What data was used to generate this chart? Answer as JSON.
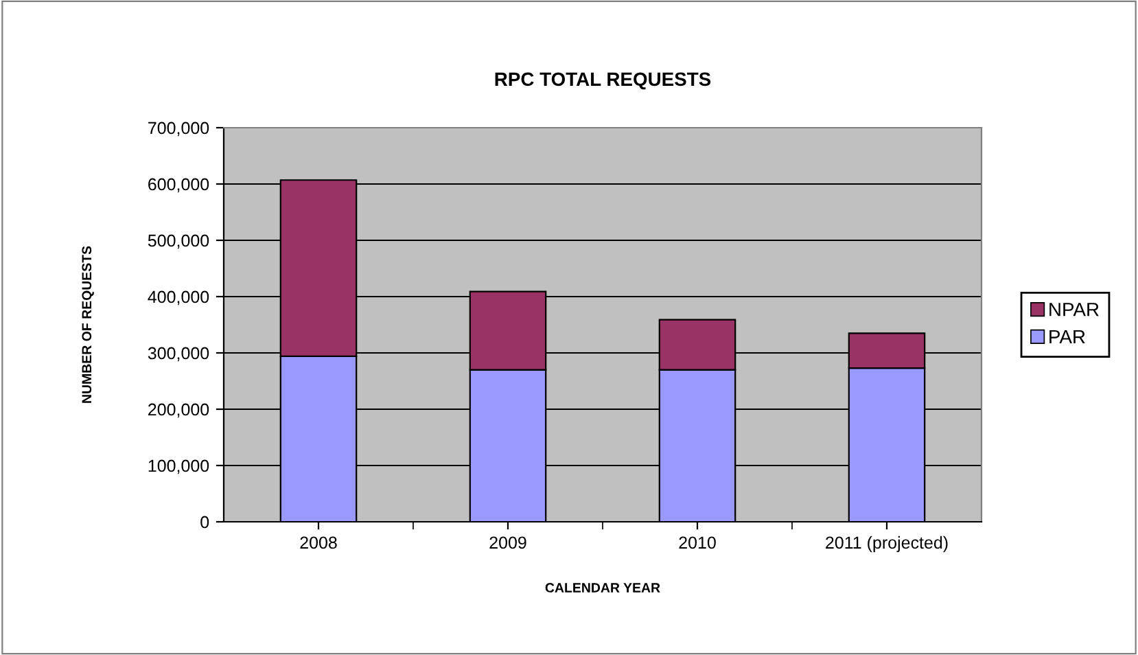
{
  "chart_data": {
    "type": "bar",
    "title": "RPC TOTAL REQUESTS",
    "xlabel": "CALENDAR YEAR",
    "ylabel": "NUMBER OF REQUESTS",
    "categories": [
      "2008",
      "2009",
      "2010",
      "2011 (projected)"
    ],
    "series": [
      {
        "name": "PAR",
        "color": "#9999ff",
        "values": [
          294000,
          270000,
          270000,
          273000
        ]
      },
      {
        "name": "NPAR",
        "color": "#993366",
        "values": [
          313000,
          139000,
          89000,
          62000
        ]
      }
    ],
    "stacked": true,
    "ylim": [
      0,
      700000
    ],
    "yticks": [
      {
        "value": 0,
        "label": "0"
      },
      {
        "value": 100000,
        "label": "100,000"
      },
      {
        "value": 200000,
        "label": "200,000"
      },
      {
        "value": 300000,
        "label": "300,000"
      },
      {
        "value": 400000,
        "label": "400,000"
      },
      {
        "value": 500000,
        "label": "500,000"
      },
      {
        "value": 600000,
        "label": "600,000"
      },
      {
        "value": 700000,
        "label": "700,000"
      }
    ],
    "grid": "y",
    "legend": "right"
  }
}
